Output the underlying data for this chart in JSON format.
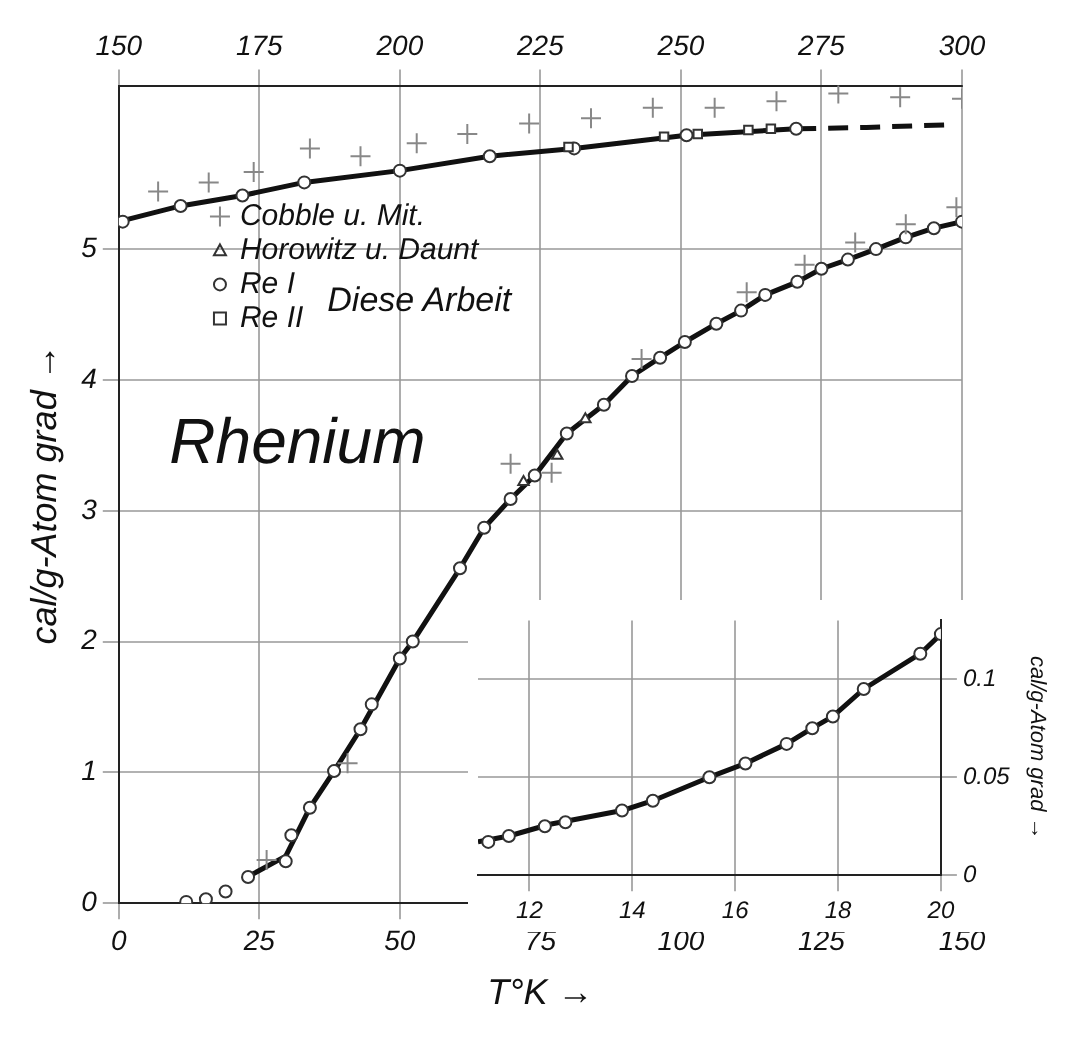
{
  "chart_data": [
    {
      "type": "line",
      "title": "Rhenium",
      "xlabel": "T°K →",
      "ylabel": "cal/g-Atom grad →",
      "xlim": [
        0,
        150
      ],
      "xticks": [
        0,
        25,
        50,
        75,
        100,
        125,
        150
      ],
      "x2lim": [
        150,
        300
      ],
      "x2ticks": [
        150,
        175,
        200,
        225,
        250,
        275,
        300
      ],
      "ylim": [
        0,
        6.25
      ],
      "yticks": [
        0,
        1,
        2,
        3,
        4,
        5
      ],
      "grid": true,
      "legend": "top left",
      "annotations": [
        "Diese Arbeit"
      ],
      "series": [
        {
          "name": "Cobble u. Mit.",
          "type": "scatter",
          "marker": "cross",
          "color": "#888888",
          "x": [
            26.3,
            40.7,
            69.7,
            77,
            93,
            111.7,
            122,
            131,
            140,
            149
          ],
          "values": [
            0.33,
            1.07,
            3.36,
            3.29,
            4.16,
            4.67,
            4.88,
            5.05,
            5.19,
            5.32
          ]
        },
        {
          "name": "Horowitz u. Daunt",
          "type": "scatter",
          "marker": "triangle",
          "color": "#333333",
          "x": [
            72,
            78,
            83
          ],
          "values": [
            3.22,
            3.42,
            3.7
          ]
        },
        {
          "name": "Re I",
          "type": "scatter",
          "marker": "circle",
          "color": "#333333",
          "x": [
            12,
            15.5,
            19,
            23,
            29.7,
            30.7,
            34,
            38.3,
            43,
            45,
            50,
            52.3,
            60.7,
            65,
            69.7,
            74,
            79.7,
            86.3,
            91.3,
            96.3,
            100.7,
            106.3,
            110.7,
            115,
            120.7,
            125,
            129.7,
            134.7,
            140,
            145,
            150
          ],
          "values": [
            0.01,
            0.03,
            0.09,
            0.2,
            0.32,
            0.52,
            0.73,
            1.01,
            1.33,
            1.52,
            1.87,
            2.0,
            2.56,
            2.87,
            3.09,
            3.27,
            3.59,
            3.81,
            4.03,
            4.17,
            4.29,
            4.43,
            4.53,
            4.65,
            4.75,
            4.85,
            4.92,
            5.0,
            5.09,
            5.16,
            5.21
          ]
        },
        {
          "name": "Re II",
          "type": "scatter",
          "marker": "square",
          "axis": "x2",
          "color": "#333333",
          "x": [
            230,
            247,
            253,
            262,
            266
          ],
          "values": [
            5.78,
            5.86,
            5.88,
            5.91,
            5.92
          ]
        },
        {
          "type": "scatter",
          "marker": "circle",
          "axis": "x2",
          "color": "#333333",
          "x": [
            150.7,
            161,
            172,
            183,
            200,
            216,
            231,
            251,
            270.5
          ],
          "values": [
            5.21,
            5.33,
            5.41,
            5.51,
            5.6,
            5.71,
            5.77,
            5.87,
            5.92
          ]
        },
        {
          "type": "scatter",
          "marker": "cross",
          "axis": "x2",
          "color": "#888888",
          "x": [
            157,
            166,
            174,
            184,
            193,
            203,
            212,
            223,
            234,
            245,
            256,
            267,
            278,
            289,
            300
          ],
          "values": [
            5.44,
            5.51,
            5.59,
            5.77,
            5.71,
            5.81,
            5.88,
            5.96,
            6.0,
            6.08,
            6.08,
            6.13,
            6.19,
            6.16,
            6.15
          ]
        },
        {
          "type": "line",
          "marker": "none",
          "line_style": "solid",
          "color": "#111111",
          "x": [
            22,
            25,
            29.7,
            34,
            38.3,
            43,
            50,
            52.3,
            60.7,
            65,
            69.7,
            74,
            79.7,
            86.3,
            91.3,
            96.3,
            100.7,
            106.3,
            110.7,
            115,
            120.7,
            125,
            129.7,
            134.7,
            140,
            145,
            150
          ],
          "values": [
            0.18,
            0.25,
            0.36,
            0.73,
            1.01,
            1.33,
            1.87,
            2.0,
            2.56,
            2.87,
            3.09,
            3.27,
            3.59,
            3.81,
            4.03,
            4.17,
            4.29,
            4.43,
            4.53,
            4.65,
            4.75,
            4.85,
            4.92,
            5.0,
            5.09,
            5.16,
            5.21
          ]
        },
        {
          "type": "line",
          "marker": "none",
          "line_style": "solid",
          "axis": "x2",
          "color": "#111111",
          "x": [
            150,
            161,
            172,
            183,
            200,
            216,
            231,
            251,
            270.5
          ],
          "values": [
            5.21,
            5.33,
            5.41,
            5.51,
            5.6,
            5.71,
            5.77,
            5.87,
            5.92
          ]
        },
        {
          "type": "line",
          "marker": "none",
          "line_style": "dashed",
          "axis": "x2",
          "color": "#111111",
          "x": [
            270.5,
            283,
            297
          ],
          "values": [
            5.92,
            5.93,
            5.95
          ]
        }
      ]
    },
    {
      "type": "line",
      "y2label": "cal/g-Atom grad →",
      "xlim": [
        11,
        20
      ],
      "xticks": [
        12,
        14,
        16,
        18,
        20
      ],
      "y2lim": [
        0,
        0.13
      ],
      "y2ticks": [
        0,
        0.05,
        0.1
      ],
      "grid": true,
      "series": [
        {
          "type": "line",
          "marker": "none",
          "line_style": "solid",
          "axis": "y2",
          "color": "#111111",
          "x": [
            11,
            11.6,
            12.4,
            13.8,
            14.4,
            15.5,
            16.2,
            17,
            17.5,
            17.9,
            18.5,
            19.6,
            20
          ],
          "values": [
            0.017,
            0.02,
            0.026,
            0.033,
            0.038,
            0.05,
            0.057,
            0.067,
            0.075,
            0.081,
            0.095,
            0.113,
            0.123
          ]
        },
        {
          "type": "scatter",
          "marker": "circle",
          "axis": "y2",
          "color": "#333333",
          "x": [
            11.2,
            11.6,
            12.3,
            12.7,
            13.8,
            14.4,
            15.5,
            16.2,
            17,
            17.5,
            17.9,
            18.5,
            19.6,
            20
          ],
          "values": [
            0.017,
            0.02,
            0.025,
            0.027,
            0.033,
            0.038,
            0.05,
            0.057,
            0.067,
            0.075,
            0.081,
            0.095,
            0.113,
            0.123
          ]
        }
      ]
    }
  ]
}
